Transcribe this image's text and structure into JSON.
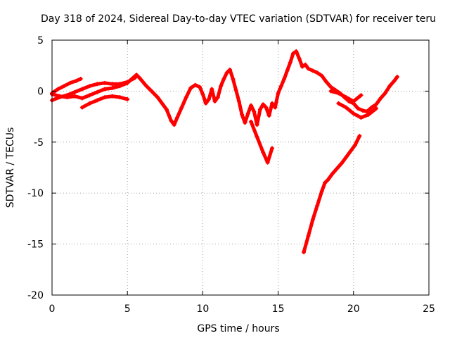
{
  "chart_data": {
    "type": "scatter",
    "title": "Day 318 of 2024, Sidereal Day-to-day VTEC variation (SDTVAR) for receiver teru",
    "xlabel": "GPS time / hours",
    "ylabel": "SDTVAR / TECUs",
    "xlim": [
      0,
      25
    ],
    "ylim": [
      -20,
      5
    ],
    "xticks": [
      0,
      5,
      10,
      15,
      20,
      25
    ],
    "yticks": [
      -20,
      -15,
      -10,
      -5,
      0,
      5
    ],
    "grid": true,
    "marker": "plus",
    "color": "#ff0000",
    "series": [
      {
        "name": "main-trace",
        "x": [
          0.0,
          0.5,
          1.0,
          1.5,
          2.0,
          2.5,
          3.0,
          3.5,
          4.0,
          4.5,
          5.0,
          5.3,
          5.6,
          5.8,
          6.2,
          6.6,
          7.0,
          7.3,
          7.6,
          7.9,
          8.1,
          8.3,
          8.6,
          8.9,
          9.2,
          9.5,
          9.8,
          10.0,
          10.2,
          10.4,
          10.6,
          10.8,
          11.0,
          11.2,
          11.4,
          11.6,
          11.8,
          12.0,
          12.2,
          12.4,
          12.6,
          12.8,
          13.0,
          13.2,
          13.4,
          13.6,
          13.8,
          14.0,
          14.2,
          14.4,
          14.6,
          14.8,
          15.0,
          15.2,
          15.4,
          15.6,
          15.8,
          16.0,
          16.2,
          16.4,
          16.6,
          16.8,
          17.0,
          17.3,
          17.6,
          17.9,
          18.2,
          18.5,
          18.8,
          19.1,
          19.4,
          19.7,
          20.0,
          20.3,
          20.6,
          20.9,
          21.2,
          21.5,
          21.8,
          22.1,
          22.4,
          22.7,
          22.9
        ],
        "y": [
          -0.3,
          -0.5,
          -0.6,
          -0.5,
          -0.7,
          -0.4,
          -0.1,
          0.2,
          0.3,
          0.5,
          0.8,
          1.2,
          1.6,
          1.3,
          0.6,
          0.0,
          -0.6,
          -1.2,
          -1.8,
          -2.9,
          -3.3,
          -2.6,
          -1.6,
          -0.6,
          0.3,
          0.6,
          0.4,
          -0.3,
          -1.2,
          -0.8,
          0.2,
          -1.0,
          -0.6,
          0.5,
          1.2,
          1.8,
          2.1,
          1.2,
          0.1,
          -1.0,
          -2.3,
          -3.1,
          -2.2,
          -1.4,
          -2.0,
          -3.3,
          -1.8,
          -1.3,
          -1.6,
          -2.4,
          -1.2,
          -1.6,
          -0.2,
          0.5,
          1.2,
          2.0,
          2.8,
          3.7,
          3.9,
          3.2,
          2.4,
          2.6,
          2.2,
          2.0,
          1.8,
          1.5,
          0.9,
          0.4,
          0.1,
          -0.2,
          -0.6,
          -1.0,
          -1.2,
          -1.7,
          -1.9,
          -2.0,
          -1.6,
          -1.3,
          -0.7,
          -0.2,
          0.5,
          1.0,
          1.4
        ]
      },
      {
        "name": "upper-branch-early",
        "x": [
          0.0,
          0.4,
          0.8,
          1.2,
          1.6,
          1.9
        ],
        "y": [
          -0.2,
          0.2,
          0.5,
          0.8,
          1.0,
          1.2
        ]
      },
      {
        "name": "middle-branch-early",
        "x": [
          0.0,
          0.5,
          1.0,
          1.5,
          2.0,
          2.5,
          3.0,
          3.5,
          4.0,
          4.5,
          5.0,
          5.5
        ],
        "y": [
          -0.9,
          -0.6,
          -0.4,
          -0.1,
          0.2,
          0.5,
          0.7,
          0.8,
          0.7,
          0.7,
          0.9,
          1.3
        ]
      },
      {
        "name": "lower-branch-early",
        "x": [
          2.0,
          2.5,
          3.0,
          3.5,
          4.0,
          4.5,
          5.0
        ],
        "y": [
          -1.6,
          -1.2,
          -0.9,
          -0.6,
          -0.5,
          -0.6,
          -0.8
        ]
      },
      {
        "name": "late-lower-branch",
        "x": [
          19.0,
          19.5,
          20.0,
          20.5,
          21.0,
          21.5
        ],
        "y": [
          -1.2,
          -1.6,
          -2.2,
          -2.6,
          -2.3,
          -1.7
        ]
      },
      {
        "name": "late-upper-branch",
        "x": [
          18.5,
          19.0,
          19.5,
          20.0,
          20.5
        ],
        "y": [
          0.0,
          -0.2,
          -0.6,
          -1.0,
          -0.4
        ]
      },
      {
        "name": "dip-branch",
        "x": [
          13.2,
          13.6,
          14.0,
          14.3,
          14.6
        ],
        "y": [
          -3.0,
          -4.5,
          -6.0,
          -7.0,
          -5.6
        ]
      },
      {
        "name": "descending-trend",
        "x": [
          16.7,
          17.0,
          17.3,
          17.6,
          17.9,
          18.1,
          18.3,
          18.6,
          18.9,
          19.2,
          19.5,
          19.8,
          20.1,
          20.4
        ],
        "y": [
          -15.8,
          -14.2,
          -12.6,
          -11.2,
          -9.8,
          -9.0,
          -8.7,
          -8.1,
          -7.6,
          -7.1,
          -6.5,
          -5.9,
          -5.3,
          -4.4
        ]
      }
    ]
  }
}
